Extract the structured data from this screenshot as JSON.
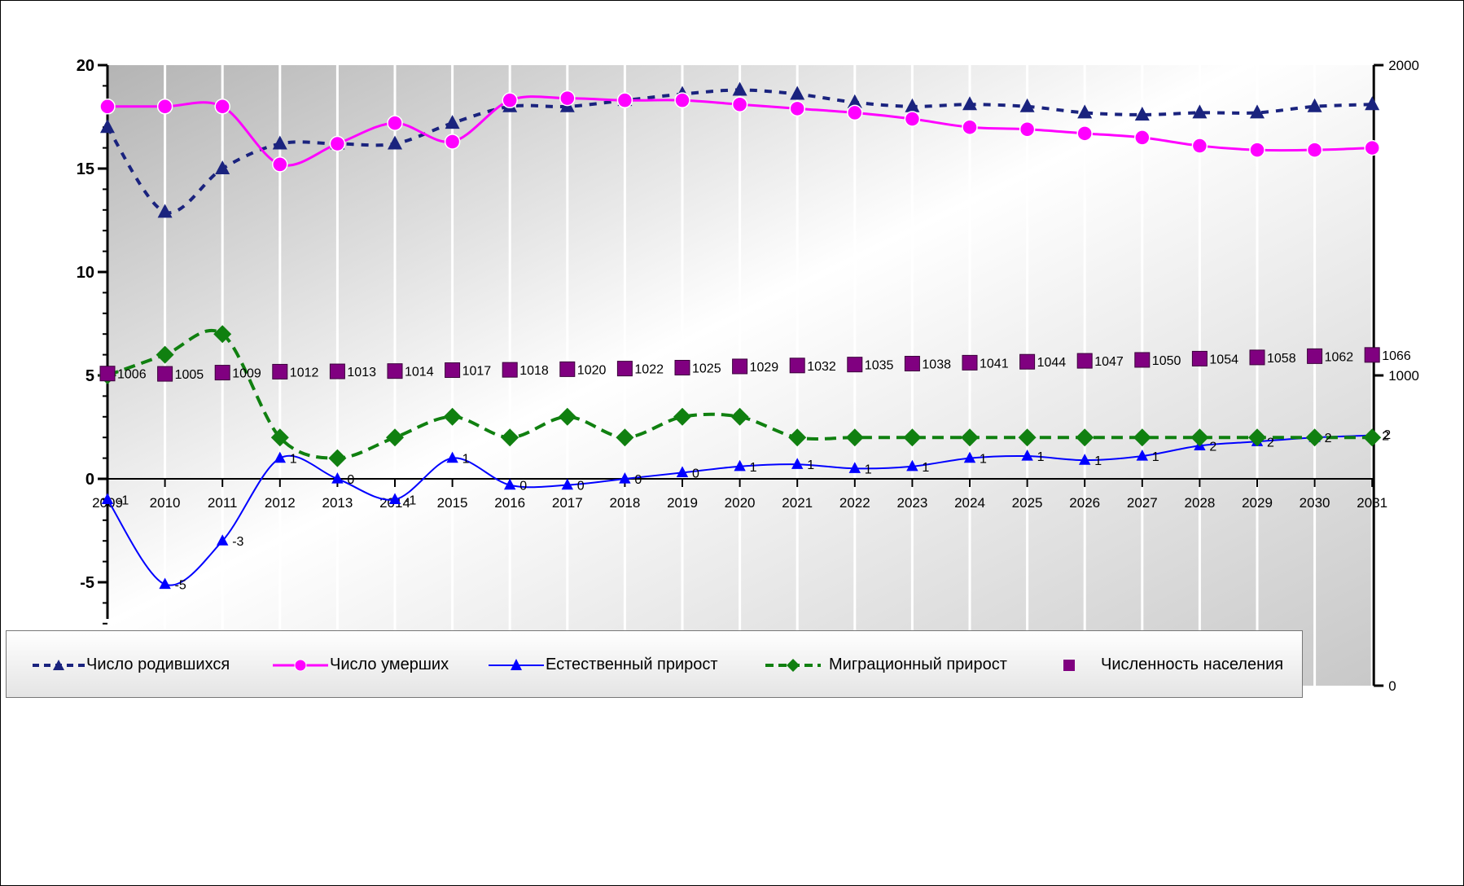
{
  "chart_data": {
    "type": "line",
    "x": [
      "2009",
      "2010",
      "2011",
      "2012",
      "2013",
      "2014",
      "2015",
      "2016",
      "2017",
      "2018",
      "2019",
      "2020",
      "2021",
      "2022",
      "2023",
      "2024",
      "2025",
      "2026",
      "2027",
      "2028",
      "2029",
      "2030",
      "2031"
    ],
    "left_axis": {
      "ylim": [
        -8,
        20
      ],
      "ticks": [
        "20",
        "15",
        "10",
        "5",
        "0",
        "-5"
      ]
    },
    "right_axis": {
      "ylim": [
        0,
        2000
      ],
      "ticks": [
        "2000",
        "1000",
        "0"
      ]
    },
    "series": [
      {
        "name": "Число родившихся",
        "axis": "left",
        "style": "dashed",
        "marker": "triangle",
        "color": "#1a237e",
        "values": [
          17.0,
          12.9,
          15.0,
          16.2,
          16.2,
          16.2,
          17.2,
          18.0,
          18.0,
          18.3,
          18.6,
          18.8,
          18.6,
          18.2,
          18.0,
          18.1,
          18.0,
          17.7,
          17.6,
          17.7,
          17.7,
          18.0,
          18.1
        ]
      },
      {
        "name": "Число умерших",
        "axis": "left",
        "style": "solid",
        "marker": "circle",
        "color": "#ff00ff",
        "values": [
          18.0,
          18.0,
          18.0,
          15.2,
          16.2,
          17.2,
          16.3,
          18.3,
          18.4,
          18.3,
          18.3,
          18.1,
          17.9,
          17.7,
          17.4,
          17.0,
          16.9,
          16.7,
          16.5,
          16.1,
          15.9,
          15.9,
          16.0
        ]
      },
      {
        "name": "Естественный прирост",
        "axis": "left",
        "style": "solid",
        "marker": "triangle",
        "color": "#0000ff",
        "values": [
          -1.0,
          -5.1,
          -3.0,
          1.0,
          0.0,
          -1.0,
          1.0,
          -0.3,
          -0.3,
          0.0,
          0.3,
          0.6,
          0.7,
          0.5,
          0.6,
          1.0,
          1.1,
          0.9,
          1.1,
          1.6,
          1.8,
          2.0,
          2.1
        ],
        "labels": [
          "-1",
          "-5",
          "-3",
          "1",
          "0",
          "-1",
          "1",
          "0",
          "0",
          "0",
          "0",
          "1",
          "1",
          "1",
          "1",
          "1",
          "1",
          "1",
          "1",
          "2",
          "2",
          "2",
          "2"
        ]
      },
      {
        "name": "Миграционный прирост",
        "axis": "left",
        "style": "dashed",
        "marker": "diamond",
        "color": "#108010",
        "values": [
          5.0,
          6.0,
          7.0,
          2.0,
          1.0,
          2.0,
          3.0,
          2.0,
          3.0,
          2.0,
          3.0,
          3.0,
          2.0,
          2.0,
          2.0,
          2.0,
          2.0,
          2.0,
          2.0,
          2.0,
          2.0,
          2.0,
          2.0
        ],
        "last_label": "2"
      },
      {
        "name": "Численность населения",
        "axis": "right",
        "style": "none",
        "marker": "square",
        "color": "#800080",
        "values": [
          1006,
          1005,
          1009,
          1012,
          1013,
          1014,
          1017,
          1018,
          1020,
          1022,
          1025,
          1029,
          1032,
          1035,
          1038,
          1041,
          1044,
          1047,
          1050,
          1054,
          1058,
          1062,
          1066
        ],
        "labels": [
          "1006",
          "1005",
          "1009",
          "1012",
          "1013",
          "1014",
          "1017",
          "1018",
          "1020",
          "1022",
          "1025",
          "1029",
          "1032",
          "1035",
          "1038",
          "1041",
          "1044",
          "1047",
          "1050",
          "1054",
          "1058",
          "1062",
          "1066"
        ]
      }
    ],
    "grid": "vertical-white",
    "legend": "bottom"
  },
  "legend": {
    "items": [
      {
        "label": "Число родившихся"
      },
      {
        "label": "Число умерших"
      },
      {
        "label": "Естественный прирост"
      },
      {
        "label": "Миграционный прирост"
      },
      {
        "label": "Численность населения"
      }
    ]
  }
}
